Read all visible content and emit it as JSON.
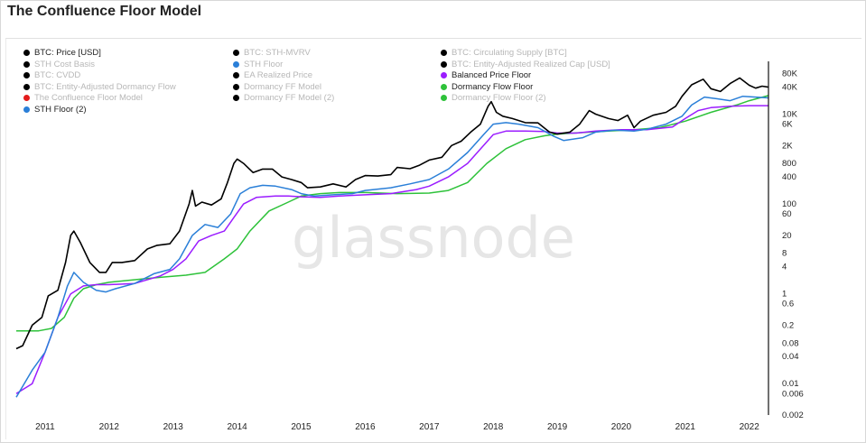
{
  "page_title": "The Confluence Floor Model",
  "watermark": "glassnode",
  "colors": {
    "price": "#000000",
    "balanced": "#9b1dff",
    "dormancy": "#2ec23a",
    "sth": "#2a7fd8"
  },
  "legend": [
    {
      "label": "BTC: Price [USD]",
      "color": "#000000",
      "active": true
    },
    {
      "label": "BTC: STH-MVRV",
      "color": "#000000",
      "active": false
    },
    {
      "label": "BTC: Circulating Supply [BTC]",
      "color": "#000000",
      "active": false
    },
    {
      "label": "STH Cost Basis",
      "color": "#000000",
      "active": false
    },
    {
      "label": "STH Floor",
      "color": "#2a7fd8",
      "active": false
    },
    {
      "label": "BTC: Entity-Adjusted Realized Cap [USD]",
      "color": "#000000",
      "active": false
    },
    {
      "label": "BTC: CVDD",
      "color": "#000000",
      "active": false
    },
    {
      "label": "EA Realized Price",
      "color": "#000000",
      "active": false
    },
    {
      "label": "Balanced Price Floor",
      "color": "#9b1dff",
      "active": true
    },
    {
      "label": "BTC: Entity-Adjusted Dormancy Flow",
      "color": "#000000",
      "active": false
    },
    {
      "label": "Dormancy FF Model",
      "color": "#000000",
      "active": false
    },
    {
      "label": "Dormancy Flow Floor",
      "color": "#2ec23a",
      "active": true
    },
    {
      "label": "The Confluence Floor Model",
      "color": "#e31b1b",
      "active": false
    },
    {
      "label": "Dormancy FF Model (2)",
      "color": "#000000",
      "active": false
    },
    {
      "label": "Dormancy Flow Floor (2)",
      "color": "#2ec23a",
      "active": false
    },
    {
      "label": "STH Floor (2)",
      "color": "#2a7fd8",
      "active": true
    }
  ],
  "chart_data": {
    "type": "line",
    "title": "The Confluence Floor Model",
    "y_scale": "log",
    "ylim": [
      0.002,
      150000
    ],
    "xlim": [
      2010.55,
      2022.3
    ],
    "x_tick_labels": [
      "2011",
      "2012",
      "2013",
      "2014",
      "2015",
      "2016",
      "2017",
      "2018",
      "2019",
      "2020",
      "2021",
      "2022"
    ],
    "x_tick_values": [
      2011,
      2012,
      2013,
      2014,
      2015,
      2016,
      2017,
      2018,
      2019,
      2020,
      2021,
      2022
    ],
    "y_tick_labels": [
      "80K",
      "40K",
      "10K",
      "6K",
      "2K",
      "800",
      "400",
      "100",
      "60",
      "20",
      "8",
      "4",
      "1",
      "0.6",
      "0.2",
      "0.08",
      "0.04",
      "0.01",
      "0.006",
      "0.002"
    ],
    "y_tick_values": [
      80000,
      40000,
      10000,
      6000,
      2000,
      800,
      400,
      100,
      60,
      20,
      8,
      4,
      1,
      0.6,
      0.2,
      0.08,
      0.04,
      0.01,
      0.006,
      0.002
    ],
    "series": [
      {
        "name": "BTC: Price [USD]",
        "points": [
          [
            2010.55,
            0.06
          ],
          [
            2010.65,
            0.07
          ],
          [
            2010.8,
            0.2
          ],
          [
            2010.95,
            0.3
          ],
          [
            2011.05,
            0.9
          ],
          [
            2011.2,
            1.2
          ],
          [
            2011.32,
            5
          ],
          [
            2011.4,
            20
          ],
          [
            2011.45,
            25
          ],
          [
            2011.55,
            14
          ],
          [
            2011.7,
            5
          ],
          [
            2011.85,
            3
          ],
          [
            2011.95,
            3
          ],
          [
            2012.05,
            5
          ],
          [
            2012.2,
            5
          ],
          [
            2012.4,
            5.5
          ],
          [
            2012.6,
            10
          ],
          [
            2012.75,
            12
          ],
          [
            2012.95,
            13
          ],
          [
            2013.1,
            25
          ],
          [
            2013.25,
            100
          ],
          [
            2013.3,
            200
          ],
          [
            2013.35,
            90
          ],
          [
            2013.45,
            110
          ],
          [
            2013.6,
            95
          ],
          [
            2013.75,
            130
          ],
          [
            2013.85,
            300
          ],
          [
            2013.95,
            800
          ],
          [
            2014.0,
            1000
          ],
          [
            2014.05,
            900
          ],
          [
            2014.1,
            800
          ],
          [
            2014.25,
            500
          ],
          [
            2014.4,
            600
          ],
          [
            2014.55,
            600
          ],
          [
            2014.7,
            400
          ],
          [
            2014.85,
            350
          ],
          [
            2015.0,
            300
          ],
          [
            2015.1,
            230
          ],
          [
            2015.3,
            240
          ],
          [
            2015.5,
            280
          ],
          [
            2015.7,
            240
          ],
          [
            2015.85,
            350
          ],
          [
            2016.0,
            430
          ],
          [
            2016.2,
            420
          ],
          [
            2016.4,
            450
          ],
          [
            2016.5,
            650
          ],
          [
            2016.7,
            610
          ],
          [
            2016.85,
            730
          ],
          [
            2017.0,
            950
          ],
          [
            2017.2,
            1100
          ],
          [
            2017.35,
            2000
          ],
          [
            2017.5,
            2500
          ],
          [
            2017.65,
            4000
          ],
          [
            2017.8,
            6000
          ],
          [
            2017.92,
            15000
          ],
          [
            2017.97,
            19000
          ],
          [
            2018.05,
            11000
          ],
          [
            2018.15,
            9000
          ],
          [
            2018.3,
            8000
          ],
          [
            2018.5,
            6500
          ],
          [
            2018.7,
            6400
          ],
          [
            2018.88,
            4000
          ],
          [
            2019.0,
            3600
          ],
          [
            2019.2,
            4000
          ],
          [
            2019.35,
            6000
          ],
          [
            2019.5,
            12000
          ],
          [
            2019.6,
            10000
          ],
          [
            2019.8,
            8000
          ],
          [
            2019.95,
            7200
          ],
          [
            2020.1,
            9500
          ],
          [
            2020.2,
            5000
          ],
          [
            2020.3,
            7000
          ],
          [
            2020.5,
            9500
          ],
          [
            2020.7,
            11000
          ],
          [
            2020.85,
            15000
          ],
          [
            2020.95,
            25000
          ],
          [
            2021.1,
            45000
          ],
          [
            2021.28,
            60000
          ],
          [
            2021.4,
            37000
          ],
          [
            2021.55,
            32000
          ],
          [
            2021.7,
            48000
          ],
          [
            2021.85,
            64000
          ],
          [
            2022.0,
            44000
          ],
          [
            2022.1,
            38000
          ],
          [
            2022.2,
            42000
          ],
          [
            2022.3,
            40000
          ]
        ]
      },
      {
        "name": "Balanced Price Floor",
        "points": [
          [
            2010.55,
            0.006
          ],
          [
            2010.8,
            0.01
          ],
          [
            2011.0,
            0.05
          ],
          [
            2011.2,
            0.3
          ],
          [
            2011.4,
            1.0
          ],
          [
            2011.6,
            1.5
          ],
          [
            2011.8,
            1.6
          ],
          [
            2012.0,
            1.6
          ],
          [
            2012.4,
            1.7
          ],
          [
            2012.8,
            2.5
          ],
          [
            2013.0,
            3.5
          ],
          [
            2013.2,
            6
          ],
          [
            2013.4,
            15
          ],
          [
            2013.6,
            20
          ],
          [
            2013.8,
            25
          ],
          [
            2013.95,
            50
          ],
          [
            2014.1,
            100
          ],
          [
            2014.3,
            140
          ],
          [
            2014.6,
            150
          ],
          [
            2014.8,
            150
          ],
          [
            2015.0,
            145
          ],
          [
            2015.3,
            140
          ],
          [
            2015.6,
            150
          ],
          [
            2016.0,
            160
          ],
          [
            2016.4,
            170
          ],
          [
            2016.8,
            210
          ],
          [
            2017.0,
            250
          ],
          [
            2017.3,
            400
          ],
          [
            2017.6,
            800
          ],
          [
            2017.85,
            2000
          ],
          [
            2018.0,
            3500
          ],
          [
            2018.2,
            4200
          ],
          [
            2018.5,
            4200
          ],
          [
            2018.8,
            4100
          ],
          [
            2019.0,
            3800
          ],
          [
            2019.3,
            3800
          ],
          [
            2019.6,
            4200
          ],
          [
            2020.0,
            4500
          ],
          [
            2020.4,
            4500
          ],
          [
            2020.8,
            5200
          ],
          [
            2021.0,
            8000
          ],
          [
            2021.2,
            12000
          ],
          [
            2021.4,
            14000
          ],
          [
            2021.7,
            15000
          ],
          [
            2022.0,
            15500
          ],
          [
            2022.3,
            15500
          ]
        ]
      },
      {
        "name": "Dormancy Flow Floor",
        "points": [
          [
            2010.55,
            0.15
          ],
          [
            2010.9,
            0.15
          ],
          [
            2011.1,
            0.17
          ],
          [
            2011.3,
            0.3
          ],
          [
            2011.45,
            0.8
          ],
          [
            2011.6,
            1.3
          ],
          [
            2011.8,
            1.6
          ],
          [
            2012.0,
            1.8
          ],
          [
            2012.3,
            2.0
          ],
          [
            2012.6,
            2.2
          ],
          [
            2012.9,
            2.4
          ],
          [
            2013.2,
            2.6
          ],
          [
            2013.5,
            3
          ],
          [
            2013.8,
            6
          ],
          [
            2014.0,
            10
          ],
          [
            2014.2,
            25
          ],
          [
            2014.5,
            70
          ],
          [
            2014.8,
            110
          ],
          [
            2015.0,
            150
          ],
          [
            2015.3,
            170
          ],
          [
            2015.6,
            180
          ],
          [
            2016.0,
            180
          ],
          [
            2016.5,
            170
          ],
          [
            2017.0,
            175
          ],
          [
            2017.3,
            200
          ],
          [
            2017.6,
            300
          ],
          [
            2017.9,
            800
          ],
          [
            2018.2,
            1700
          ],
          [
            2018.5,
            2700
          ],
          [
            2018.8,
            3300
          ],
          [
            2019.0,
            3600
          ],
          [
            2019.4,
            3900
          ],
          [
            2019.8,
            4200
          ],
          [
            2020.2,
            4500
          ],
          [
            2020.6,
            5000
          ],
          [
            2021.0,
            7000
          ],
          [
            2021.4,
            11000
          ],
          [
            2021.8,
            16000
          ],
          [
            2022.0,
            20000
          ],
          [
            2022.3,
            26000
          ]
        ]
      },
      {
        "name": "STH Floor (2)",
        "points": [
          [
            2010.55,
            0.005
          ],
          [
            2010.8,
            0.02
          ],
          [
            2011.0,
            0.05
          ],
          [
            2011.2,
            0.3
          ],
          [
            2011.35,
            1.5
          ],
          [
            2011.45,
            3
          ],
          [
            2011.6,
            1.8
          ],
          [
            2011.8,
            1.2
          ],
          [
            2011.95,
            1.1
          ],
          [
            2012.1,
            1.3
          ],
          [
            2012.4,
            1.7
          ],
          [
            2012.7,
            2.8
          ],
          [
            2012.95,
            3.5
          ],
          [
            2013.1,
            6
          ],
          [
            2013.3,
            20
          ],
          [
            2013.5,
            35
          ],
          [
            2013.7,
            30
          ],
          [
            2013.9,
            60
          ],
          [
            2014.05,
            170
          ],
          [
            2014.2,
            230
          ],
          [
            2014.4,
            260
          ],
          [
            2014.6,
            250
          ],
          [
            2014.85,
            210
          ],
          [
            2015.0,
            170
          ],
          [
            2015.2,
            150
          ],
          [
            2015.5,
            160
          ],
          [
            2015.8,
            170
          ],
          [
            2016.0,
            200
          ],
          [
            2016.4,
            230
          ],
          [
            2016.7,
            280
          ],
          [
            2017.0,
            350
          ],
          [
            2017.3,
            600
          ],
          [
            2017.6,
            1400
          ],
          [
            2017.85,
            3500
          ],
          [
            2018.0,
            6000
          ],
          [
            2018.2,
            6500
          ],
          [
            2018.4,
            6000
          ],
          [
            2018.7,
            5000
          ],
          [
            2018.95,
            3200
          ],
          [
            2019.1,
            2600
          ],
          [
            2019.4,
            3000
          ],
          [
            2019.6,
            4000
          ],
          [
            2019.9,
            4400
          ],
          [
            2020.2,
            4200
          ],
          [
            2020.4,
            4600
          ],
          [
            2020.7,
            6000
          ],
          [
            2020.95,
            9000
          ],
          [
            2021.1,
            16000
          ],
          [
            2021.3,
            24000
          ],
          [
            2021.5,
            22000
          ],
          [
            2021.7,
            20000
          ],
          [
            2021.9,
            25000
          ],
          [
            2022.1,
            24000
          ],
          [
            2022.3,
            23000
          ]
        ]
      }
    ]
  }
}
